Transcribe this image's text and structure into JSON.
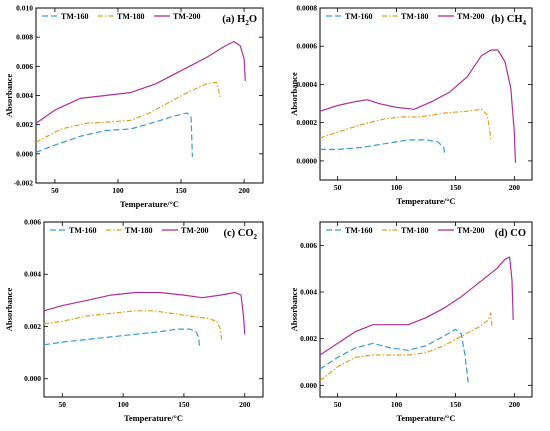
{
  "chart_data": [
    {
      "type": "line",
      "title": "(a) H",
      "title_sub": "2",
      "title_tail": "O",
      "xlabel": "Temperature/°C",
      "ylabel": "Absorbance",
      "xlim": [
        35,
        215
      ],
      "ylim": [
        -0.002,
        0.01
      ],
      "xticks": [
        50,
        100,
        150,
        200
      ],
      "yticks": [
        -0.002,
        0.0,
        0.002,
        0.004,
        0.006,
        0.008,
        0.01
      ],
      "ytick_labels": [
        "-0.002",
        "0.000",
        "0.002",
        "0.004",
        "0.006",
        "0.008",
        "0.010"
      ],
      "legend_position": "top",
      "series": [
        {
          "name": "TM-160",
          "color": "#3a9ad9",
          "dash": "dashed",
          "x": [
            35,
            50,
            70,
            90,
            110,
            130,
            145,
            155,
            158,
            159
          ],
          "y": [
            0.0001,
            0.0006,
            0.0012,
            0.0016,
            0.0017,
            0.0022,
            0.0026,
            0.0028,
            0.0025,
            -0.0002
          ]
        },
        {
          "name": "TM-180",
          "color": "#e0a020",
          "dash": "dashdot",
          "x": [
            35,
            55,
            75,
            95,
            110,
            125,
            140,
            155,
            170,
            178,
            180,
            181
          ],
          "y": [
            0.0008,
            0.0017,
            0.0021,
            0.0022,
            0.0023,
            0.0028,
            0.0035,
            0.0042,
            0.0048,
            0.0049,
            0.0043,
            0.0038
          ]
        },
        {
          "name": "TM-200",
          "color": "#b0309a",
          "dash": "solid",
          "x": [
            35,
            50,
            70,
            90,
            110,
            130,
            150,
            170,
            185,
            192,
            197,
            200,
            201
          ],
          "y": [
            0.0021,
            0.003,
            0.0038,
            0.004,
            0.0042,
            0.0048,
            0.0057,
            0.0066,
            0.0074,
            0.0077,
            0.0074,
            0.0065,
            0.005
          ]
        }
      ]
    },
    {
      "type": "line",
      "title": "(b) CH",
      "title_sub": "4",
      "title_tail": "",
      "xlabel": "Temperature/°C",
      "ylabel": "Absorbance",
      "xlim": [
        35,
        215
      ],
      "ylim": [
        -0.0001,
        0.0008
      ],
      "xticks": [
        50,
        100,
        150,
        200
      ],
      "yticks": [
        0.0,
        0.0002,
        0.0004,
        0.0006,
        0.0008
      ],
      "ytick_labels": [
        "0.0000",
        "0.0002",
        "0.0004",
        "0.0006",
        "0.0008"
      ],
      "legend_position": "top",
      "series": [
        {
          "name": "TM-160",
          "color": "#3a9ad9",
          "dash": "dashed",
          "x": [
            35,
            50,
            70,
            90,
            110,
            125,
            135,
            140,
            141
          ],
          "y": [
            6e-05,
            6e-05,
            7e-05,
            9e-05,
            0.00011,
            0.00011,
            0.0001,
            7e-05,
            3e-05
          ]
        },
        {
          "name": "TM-180",
          "color": "#e0a020",
          "dash": "dashdot",
          "x": [
            35,
            50,
            70,
            90,
            105,
            120,
            140,
            160,
            172,
            177,
            179,
            180
          ],
          "y": [
            0.00012,
            0.00015,
            0.00019,
            0.00022,
            0.00023,
            0.00023,
            0.00025,
            0.00026,
            0.00027,
            0.00024,
            0.00017,
            0.00011
          ]
        },
        {
          "name": "TM-200",
          "color": "#b0309a",
          "dash": "solid",
          "x": [
            35,
            50,
            65,
            75,
            85,
            100,
            115,
            130,
            145,
            160,
            172,
            180,
            186,
            192,
            197,
            200,
            201
          ],
          "y": [
            0.00026,
            0.00029,
            0.00031,
            0.00032,
            0.0003,
            0.00028,
            0.00027,
            0.00031,
            0.00036,
            0.00044,
            0.00055,
            0.00058,
            0.00058,
            0.00052,
            0.00038,
            0.00015,
            -1e-05
          ]
        }
      ]
    },
    {
      "type": "line",
      "title": "(c) CO",
      "title_sub": "2",
      "title_tail": "",
      "xlabel": "Temperature/°C",
      "ylabel": "Absorbance",
      "xlim": [
        35,
        215
      ],
      "ylim": [
        -0.0007,
        0.006
      ],
      "xticks": [
        50,
        100,
        150,
        200
      ],
      "yticks": [
        0.0,
        0.002,
        0.004,
        0.006
      ],
      "ytick_labels": [
        "0.000",
        "0.002",
        "0.004",
        "0.006"
      ],
      "legend_position": "top",
      "series": [
        {
          "name": "TM-160",
          "color": "#3a9ad9",
          "dash": "dashed",
          "x": [
            35,
            50,
            70,
            90,
            110,
            130,
            145,
            155,
            160,
            162,
            163
          ],
          "y": [
            0.0013,
            0.0014,
            0.0015,
            0.0016,
            0.0017,
            0.0018,
            0.0019,
            0.0019,
            0.0018,
            0.0016,
            0.0012
          ]
        },
        {
          "name": "TM-180",
          "color": "#e0a020",
          "dash": "dashdot",
          "x": [
            35,
            50,
            70,
            90,
            110,
            125,
            140,
            155,
            170,
            177,
            180,
            181
          ],
          "y": [
            0.0021,
            0.0022,
            0.0024,
            0.0025,
            0.0026,
            0.0026,
            0.0025,
            0.0024,
            0.0023,
            0.0022,
            0.0019,
            0.0015
          ]
        },
        {
          "name": "TM-200",
          "color": "#b0309a",
          "dash": "solid",
          "x": [
            35,
            50,
            70,
            90,
            110,
            130,
            150,
            165,
            180,
            192,
            197,
            199,
            200
          ],
          "y": [
            0.0026,
            0.0028,
            0.003,
            0.0032,
            0.0033,
            0.0033,
            0.0032,
            0.0031,
            0.0032,
            0.0033,
            0.0032,
            0.0024,
            0.0017
          ]
        }
      ]
    },
    {
      "type": "line",
      "title": "(d) CO",
      "title_sub": "",
      "title_tail": "",
      "xlabel": "Temperature/°C",
      "ylabel": "Absorbance",
      "xlim": [
        35,
        215
      ],
      "ylim": [
        -0.0005,
        0.007
      ],
      "xticks": [
        50,
        100,
        150,
        200
      ],
      "yticks": [
        0.0,
        0.002,
        0.004,
        0.006
      ],
      "ytick_labels": [
        "0.000",
        "0.002",
        "0.004",
        "0.006"
      ],
      "legend_position": "top",
      "series": [
        {
          "name": "TM-160",
          "color": "#3a9ad9",
          "dash": "dashed",
          "x": [
            35,
            50,
            65,
            80,
            95,
            110,
            125,
            140,
            150,
            155,
            158,
            160,
            161
          ],
          "y": [
            0.0007,
            0.0012,
            0.0016,
            0.0018,
            0.0016,
            0.0015,
            0.0017,
            0.0021,
            0.0024,
            0.0022,
            0.0013,
            0.0005,
            0.0
          ]
        },
        {
          "name": "TM-180",
          "color": "#e0a020",
          "dash": "dashdot",
          "x": [
            35,
            50,
            65,
            80,
            95,
            110,
            125,
            140,
            155,
            170,
            178,
            180,
            181
          ],
          "y": [
            0.0002,
            0.0008,
            0.0012,
            0.0013,
            0.0013,
            0.0013,
            0.0014,
            0.0017,
            0.0021,
            0.0025,
            0.0028,
            0.0031,
            0.0025
          ]
        },
        {
          "name": "TM-200",
          "color": "#b0309a",
          "dash": "solid",
          "x": [
            35,
            50,
            65,
            80,
            95,
            110,
            125,
            140,
            155,
            170,
            185,
            192,
            196,
            198,
            199
          ],
          "y": [
            0.0013,
            0.0018,
            0.0023,
            0.0026,
            0.0026,
            0.0026,
            0.0029,
            0.0033,
            0.0038,
            0.0044,
            0.005,
            0.0054,
            0.0055,
            0.0045,
            0.0028
          ]
        }
      ]
    }
  ]
}
